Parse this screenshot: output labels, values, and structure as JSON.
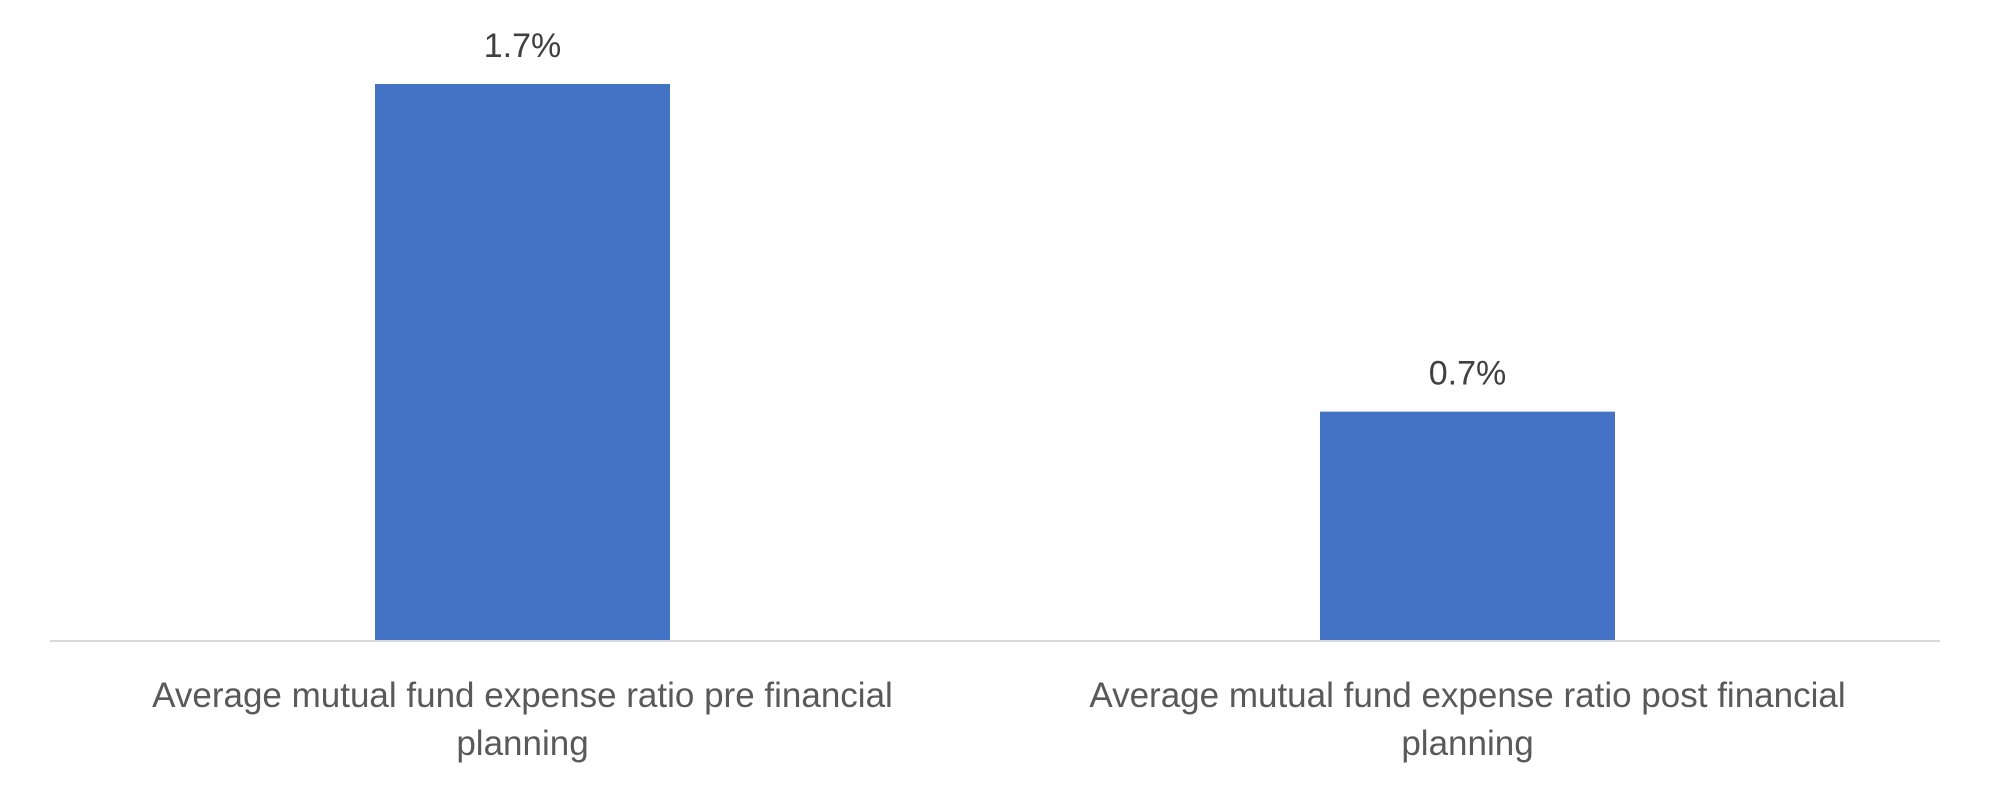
{
  "chart_data": {
    "type": "bar",
    "title": "",
    "xlabel": "",
    "ylabel": "",
    "categories": [
      [
        "Average mutual fund expense ratio pre financial",
        "planning"
      ],
      [
        "Average mutual fund expense ratio post financial",
        "planning"
      ]
    ],
    "values": [
      1.7,
      0.7
    ],
    "data_labels": [
      "1.7%",
      "0.7%"
    ],
    "ylim": [
      0,
      1.7
    ],
    "grid": false,
    "legend": "none",
    "colors": {
      "bar": "#4472c4",
      "axis": "#d9d9d9"
    }
  }
}
